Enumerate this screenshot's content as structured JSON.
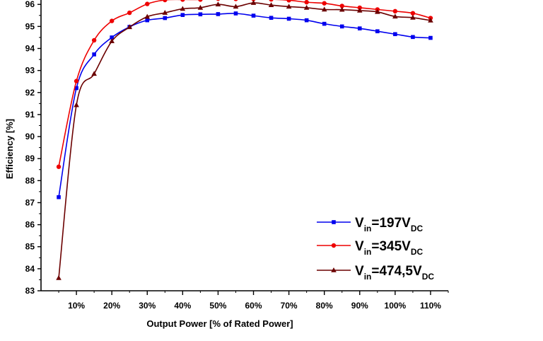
{
  "chart_data": {
    "type": "line",
    "xlabel": "Output Power [% of Rated Power]",
    "ylabel": "Efficiency [%]",
    "xlim": [
      0,
      115
    ],
    "ylim": [
      83,
      96.2
    ],
    "grid": false,
    "legend_position": "bottom-right",
    "x_ticks": [
      10,
      20,
      30,
      40,
      50,
      60,
      70,
      80,
      90,
      100,
      110
    ],
    "x_tick_labels": [
      "10%",
      "20%",
      "30%",
      "40%",
      "50%",
      "60%",
      "70%",
      "80%",
      "90%",
      "100%",
      "110%"
    ],
    "y_ticks": [
      83,
      84,
      85,
      86,
      87,
      88,
      89,
      90,
      91,
      92,
      93,
      94,
      95,
      96
    ],
    "y_tick_labels": [
      "83",
      "84",
      "85",
      "86",
      "87",
      "88",
      "89",
      "90",
      "91",
      "92",
      "93",
      "94",
      "95",
      "96"
    ],
    "x": [
      5,
      10,
      15,
      20,
      25,
      30,
      35,
      40,
      45,
      50,
      55,
      60,
      65,
      70,
      75,
      80,
      85,
      90,
      95,
      100,
      105,
      110
    ],
    "series": [
      {
        "legend_main": "V",
        "legend_sub1": "in",
        "legend_mid": "=197V",
        "legend_sub2": "DC",
        "color": "#0000ee",
        "marker": "square",
        "values": [
          87.25,
          92.2,
          93.73,
          94.5,
          94.98,
          95.28,
          95.38,
          95.52,
          95.55,
          95.56,
          95.59,
          95.49,
          95.39,
          95.35,
          95.28,
          95.12,
          95.0,
          94.91,
          94.78,
          94.65,
          94.52,
          94.48
        ]
      },
      {
        "legend_main": "V",
        "legend_sub1": "in",
        "legend_mid": "=345V",
        "legend_sub2": "DC",
        "color": "#ee0000",
        "marker": "circle",
        "values": [
          88.63,
          92.52,
          94.37,
          95.25,
          95.62,
          96.02,
          96.2,
          96.22,
          96.22,
          96.26,
          96.25,
          96.25,
          96.23,
          96.19,
          96.1,
          96.05,
          95.93,
          95.85,
          95.77,
          95.69,
          95.6,
          95.38
        ]
      },
      {
        "legend_main": "V",
        "legend_sub1": "in",
        "legend_mid": "=474,5V",
        "legend_sub2": "DC",
        "color": "#6b0000",
        "marker": "triangle",
        "values": [
          83.58,
          91.43,
          92.85,
          94.33,
          94.97,
          95.44,
          95.62,
          95.8,
          95.85,
          96.0,
          95.9,
          96.07,
          95.97,
          95.9,
          95.85,
          95.77,
          95.76,
          95.72,
          95.66,
          95.45,
          95.4,
          95.27
        ]
      }
    ]
  }
}
